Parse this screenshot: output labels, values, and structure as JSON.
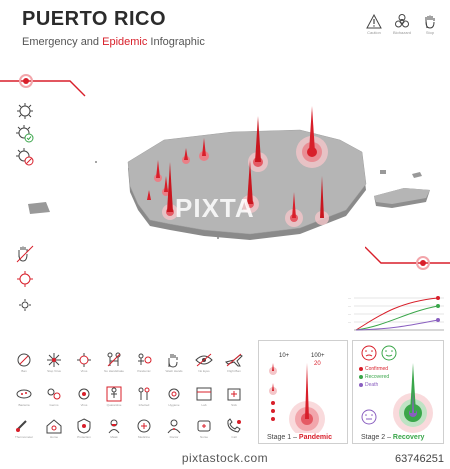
{
  "header": {
    "title": "PUERTO RICO",
    "subtitle_pre": "Emergency and ",
    "subtitle_accent": "Epidemic",
    "subtitle_post": " Infographic"
  },
  "top_icons": [
    {
      "name": "caution-icon",
      "label": "Caution"
    },
    {
      "name": "biohazard-icon",
      "label": "Biohazard"
    },
    {
      "name": "stop-hand-icon",
      "label": "Stop"
    }
  ],
  "stage1": {
    "label_small": "10+",
    "label_big": "100+",
    "label_big_value": "20",
    "caption_prefix": "Stage 1 – ",
    "caption_accent": "Pandemic"
  },
  "stage2": {
    "caption_prefix": "Stage 2 – ",
    "caption_accent": "Recovery",
    "legend": [
      "Confirmed",
      "Recovered",
      "Death"
    ]
  },
  "icon_grid": [
    "Ban",
    "Stop Virus",
    "Virus",
    "No Handshake",
    "Pandemic",
    "Wash Hands",
    "No Eyes",
    "Flight Ban",
    "Bacteria",
    "Germs",
    "Virus",
    "Quarantine",
    "Infected",
    "Hygiene",
    "Lab",
    "Sick",
    "Thermometer",
    "Home",
    "Protection",
    "Mask",
    "Medicine",
    "Doctor",
    "Nurse",
    "Call"
  ],
  "watermark": {
    "overlay": "PIXTA",
    "site": "pixtastock.com",
    "id": "63746251"
  },
  "colors": {
    "accent": "#d81f2a",
    "recovered": "#3aa64a",
    "death": "#8a5fc0",
    "map_top": "#b5b5b5",
    "map_side": "#8a8a8a"
  }
}
